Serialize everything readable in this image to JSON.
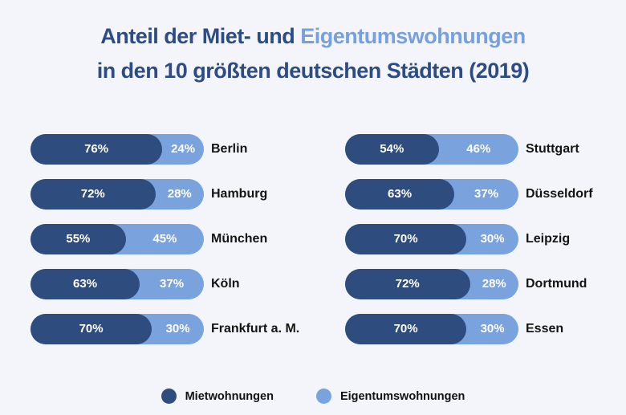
{
  "title": {
    "line1_dark": "Anteil der Miet- und",
    "line1_light": "Eigentumswohnungen",
    "line2": "in den 10 größten deutschen Städten (2019)"
  },
  "colors": {
    "background": "#f3f5fa",
    "miet": "#2e4c7d",
    "eigentum": "#7aa3de",
    "title_dark": "#2d4b85",
    "title_light": "#78a0dc",
    "city_label": "#141414",
    "percent_label": "#ffffff",
    "legend_label": "#111111"
  },
  "legend": {
    "items": [
      {
        "label": "Mietwohnungen",
        "color_key": "miet"
      },
      {
        "label": "Eigentumswohnungen",
        "color_key": "eigentum"
      }
    ]
  },
  "chart_data": {
    "type": "bar",
    "variant": "horizontal-stacked-100pct",
    "unit": "%",
    "title": "Anteil der Miet- und Eigentumswohnungen in den 10 größten deutschen Städten (2019)",
    "series": [
      "Mietwohnungen",
      "Eigentumswohnungen"
    ],
    "legend_position": "bottom",
    "grid": false,
    "groups": [
      {
        "name": "left-column",
        "rows": [
          {
            "city": "Berlin",
            "mietwohnungen_pct": 76,
            "eigentumswohnungen_pct": 24
          },
          {
            "city": "Hamburg",
            "mietwohnungen_pct": 72,
            "eigentumswohnungen_pct": 28
          },
          {
            "city": "München",
            "mietwohnungen_pct": 55,
            "eigentumswohnungen_pct": 45
          },
          {
            "city": "Köln",
            "mietwohnungen_pct": 63,
            "eigentumswohnungen_pct": 37
          },
          {
            "city": "Frankfurt a. M.",
            "mietwohnungen_pct": 70,
            "eigentumswohnungen_pct": 30
          }
        ]
      },
      {
        "name": "right-column",
        "rows": [
          {
            "city": "Stuttgart",
            "mietwohnungen_pct": 54,
            "eigentumswohnungen_pct": 46
          },
          {
            "city": "Düsseldorf",
            "mietwohnungen_pct": 63,
            "eigentumswohnungen_pct": 37
          },
          {
            "city": "Leipzig",
            "mietwohnungen_pct": 70,
            "eigentumswohnungen_pct": 30
          },
          {
            "city": "Dortmund",
            "mietwohnungen_pct": 72,
            "eigentumswohnungen_pct": 28
          },
          {
            "city": "Essen",
            "mietwohnungen_pct": 70,
            "eigentumswohnungen_pct": 30
          }
        ]
      }
    ]
  }
}
